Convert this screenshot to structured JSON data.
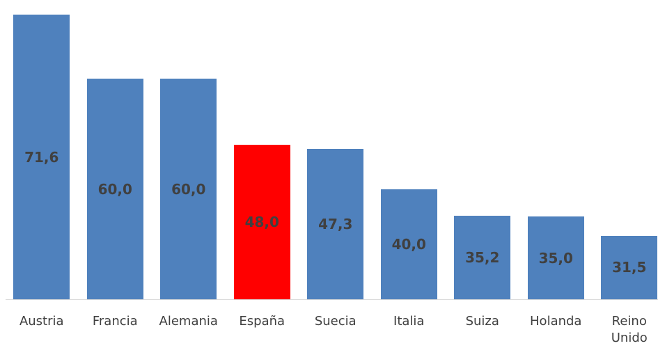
{
  "chart_data": {
    "type": "bar",
    "categories": [
      "Austria",
      "Francia",
      "Alemania",
      "España",
      "Suecia",
      "Italia",
      "Suiza",
      "Holanda",
      "Reino Unido"
    ],
    "values": [
      71.6,
      60.0,
      60.0,
      48.0,
      47.3,
      40.0,
      35.2,
      35.0,
      31.5
    ],
    "value_labels": [
      "71,6",
      "60,0",
      "60,0",
      "48,0",
      "47,3",
      "40,0",
      "35,2",
      "35,0",
      "31,5"
    ],
    "colors": [
      "#4f81bd",
      "#4f81bd",
      "#4f81bd",
      "#ff0000",
      "#4f81bd",
      "#4f81bd",
      "#4f81bd",
      "#4f81bd",
      "#4f81bd"
    ],
    "ylim": [
      20,
      72
    ]
  }
}
